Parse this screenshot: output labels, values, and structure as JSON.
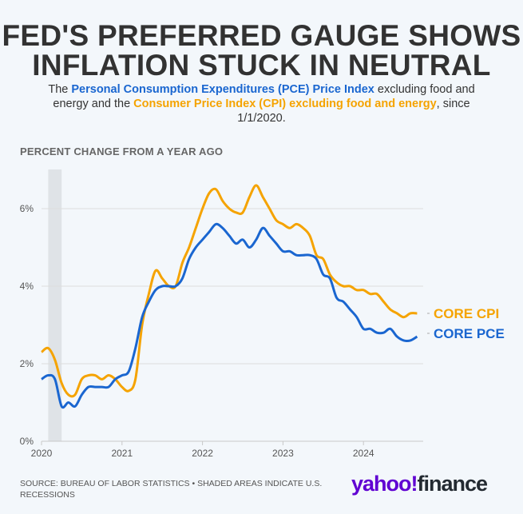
{
  "title": "FED'S PREFERRED GAUGE SHOWS INFLATION STUCK IN NEUTRAL",
  "subtitle": {
    "part1": "The ",
    "pce_name": "Personal Consumption Expenditures (PCE) Price Index",
    "part2": " excluding food and energy and the ",
    "cpi_name": "Consumer Price Index (CPI) excluding food and energy",
    "part3": ", since 1/1/2020."
  },
  "footer": {
    "source": "SOURCE: BUREAU OF LABOR STATISTICS • SHADED AREAS INDICATE U.S. RECESSIONS",
    "logo_text": "yahoo!finance",
    "logo_part1": "yahoo!",
    "logo_part2": "finance"
  },
  "colors": {
    "core_cpi": "#f5a300",
    "core_pce": "#1a66d0",
    "recession_shade": "#dfe3e7",
    "logo": "#6001d2"
  },
  "chart_data": {
    "type": "line",
    "ylabel": "PERCENT CHANGE FROM A YEAR AGO",
    "x_start": "2020-01",
    "x_frequency": "monthly",
    "x_ticks": [
      "2020",
      "2021",
      "2022",
      "2023",
      "2024"
    ],
    "y_ticks": [
      "0%",
      "2%",
      "4%",
      "6%"
    ],
    "ylim": [
      0,
      7
    ],
    "grid": "horizontal",
    "legend": "direct labels at right end of lines",
    "recession_shading": [
      {
        "start": "2020-02",
        "end": "2020-04"
      }
    ],
    "series": [
      {
        "name": "CORE CPI",
        "color": "#f5a300",
        "values": [
          2.3,
          2.4,
          2.1,
          1.5,
          1.2,
          1.2,
          1.6,
          1.7,
          1.7,
          1.6,
          1.7,
          1.6,
          1.4,
          1.3,
          1.6,
          3.0,
          3.8,
          4.4,
          4.2,
          4.0,
          4.0,
          4.6,
          5.0,
          5.5,
          6.0,
          6.4,
          6.5,
          6.2,
          6.0,
          5.9,
          5.9,
          6.3,
          6.6,
          6.3,
          6.0,
          5.7,
          5.6,
          5.5,
          5.6,
          5.5,
          5.3,
          4.8,
          4.7,
          4.3,
          4.1,
          4.0,
          4.0,
          3.9,
          3.9,
          3.8,
          3.8,
          3.6,
          3.4,
          3.3,
          3.2,
          3.3,
          3.3
        ]
      },
      {
        "name": "CORE PCE",
        "color": "#1a66d0",
        "values": [
          1.6,
          1.7,
          1.6,
          0.9,
          1.0,
          0.9,
          1.2,
          1.4,
          1.4,
          1.4,
          1.4,
          1.6,
          1.7,
          1.8,
          2.4,
          3.2,
          3.6,
          3.9,
          4.0,
          4.0,
          4.0,
          4.2,
          4.7,
          5.0,
          5.2,
          5.4,
          5.6,
          5.5,
          5.3,
          5.1,
          5.2,
          5.0,
          5.2,
          5.5,
          5.3,
          5.1,
          4.9,
          4.9,
          4.8,
          4.8,
          4.8,
          4.7,
          4.3,
          4.2,
          3.7,
          3.6,
          3.4,
          3.2,
          2.9,
          2.9,
          2.8,
          2.8,
          2.9,
          2.7,
          2.6,
          2.6,
          2.7,
          2.7,
          2.8
        ]
      }
    ]
  }
}
